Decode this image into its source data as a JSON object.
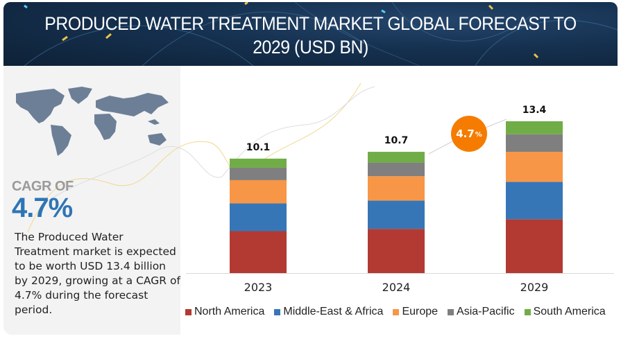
{
  "header": {
    "title_line1": "PRODUCED WATER TREATMENT MARKET GLOBAL FORECAST TO",
    "title_line2": "2029 (USD BN)"
  },
  "left_panel": {
    "map_icon": "world-map-icon",
    "cagr_label": "CAGR OF",
    "cagr_value": "4.7%",
    "description": "The Produced Water Treatment market is expected to be worth USD 13.4 billion by 2029, growing at a CAGR of 4.7% during the forecast period."
  },
  "badge": {
    "value": "4.7",
    "unit": "%"
  },
  "colors": {
    "header_bg": "#15304f",
    "cagr_blue": "#2f75b5",
    "badge_orange": "#f57c00"
  },
  "chart_data": {
    "type": "bar",
    "stacked": true,
    "title": "PRODUCED WATER TREATMENT MARKET GLOBAL FORECAST TO 2029 (USD BN)",
    "xlabel": "",
    "ylabel": "USD BN",
    "categories": [
      "2023",
      "2024",
      "2029"
    ],
    "totals": [
      "10.1",
      "10.7",
      "13.4"
    ],
    "total_values": [
      10.1,
      10.7,
      13.4
    ],
    "series": [
      {
        "name": "North America",
        "color": "#b33a32",
        "values": [
          3.7,
          3.9,
          4.75
        ]
      },
      {
        "name": "Middle-East & Africa",
        "color": "#3776b6",
        "values": [
          2.45,
          2.5,
          3.3
        ]
      },
      {
        "name": "Europe",
        "color": "#f79646",
        "values": [
          2.05,
          2.15,
          2.65
        ]
      },
      {
        "name": "Asia-Pacific",
        "color": "#7f7f7f",
        "values": [
          1.1,
          1.2,
          1.55
        ]
      },
      {
        "name": "South America",
        "color": "#70ad47",
        "values": [
          0.8,
          0.95,
          1.15
        ]
      }
    ],
    "cagr_annotation": "4.7%",
    "grid": false,
    "legend_position": "bottom",
    "ylim": [
      0,
      14
    ]
  }
}
